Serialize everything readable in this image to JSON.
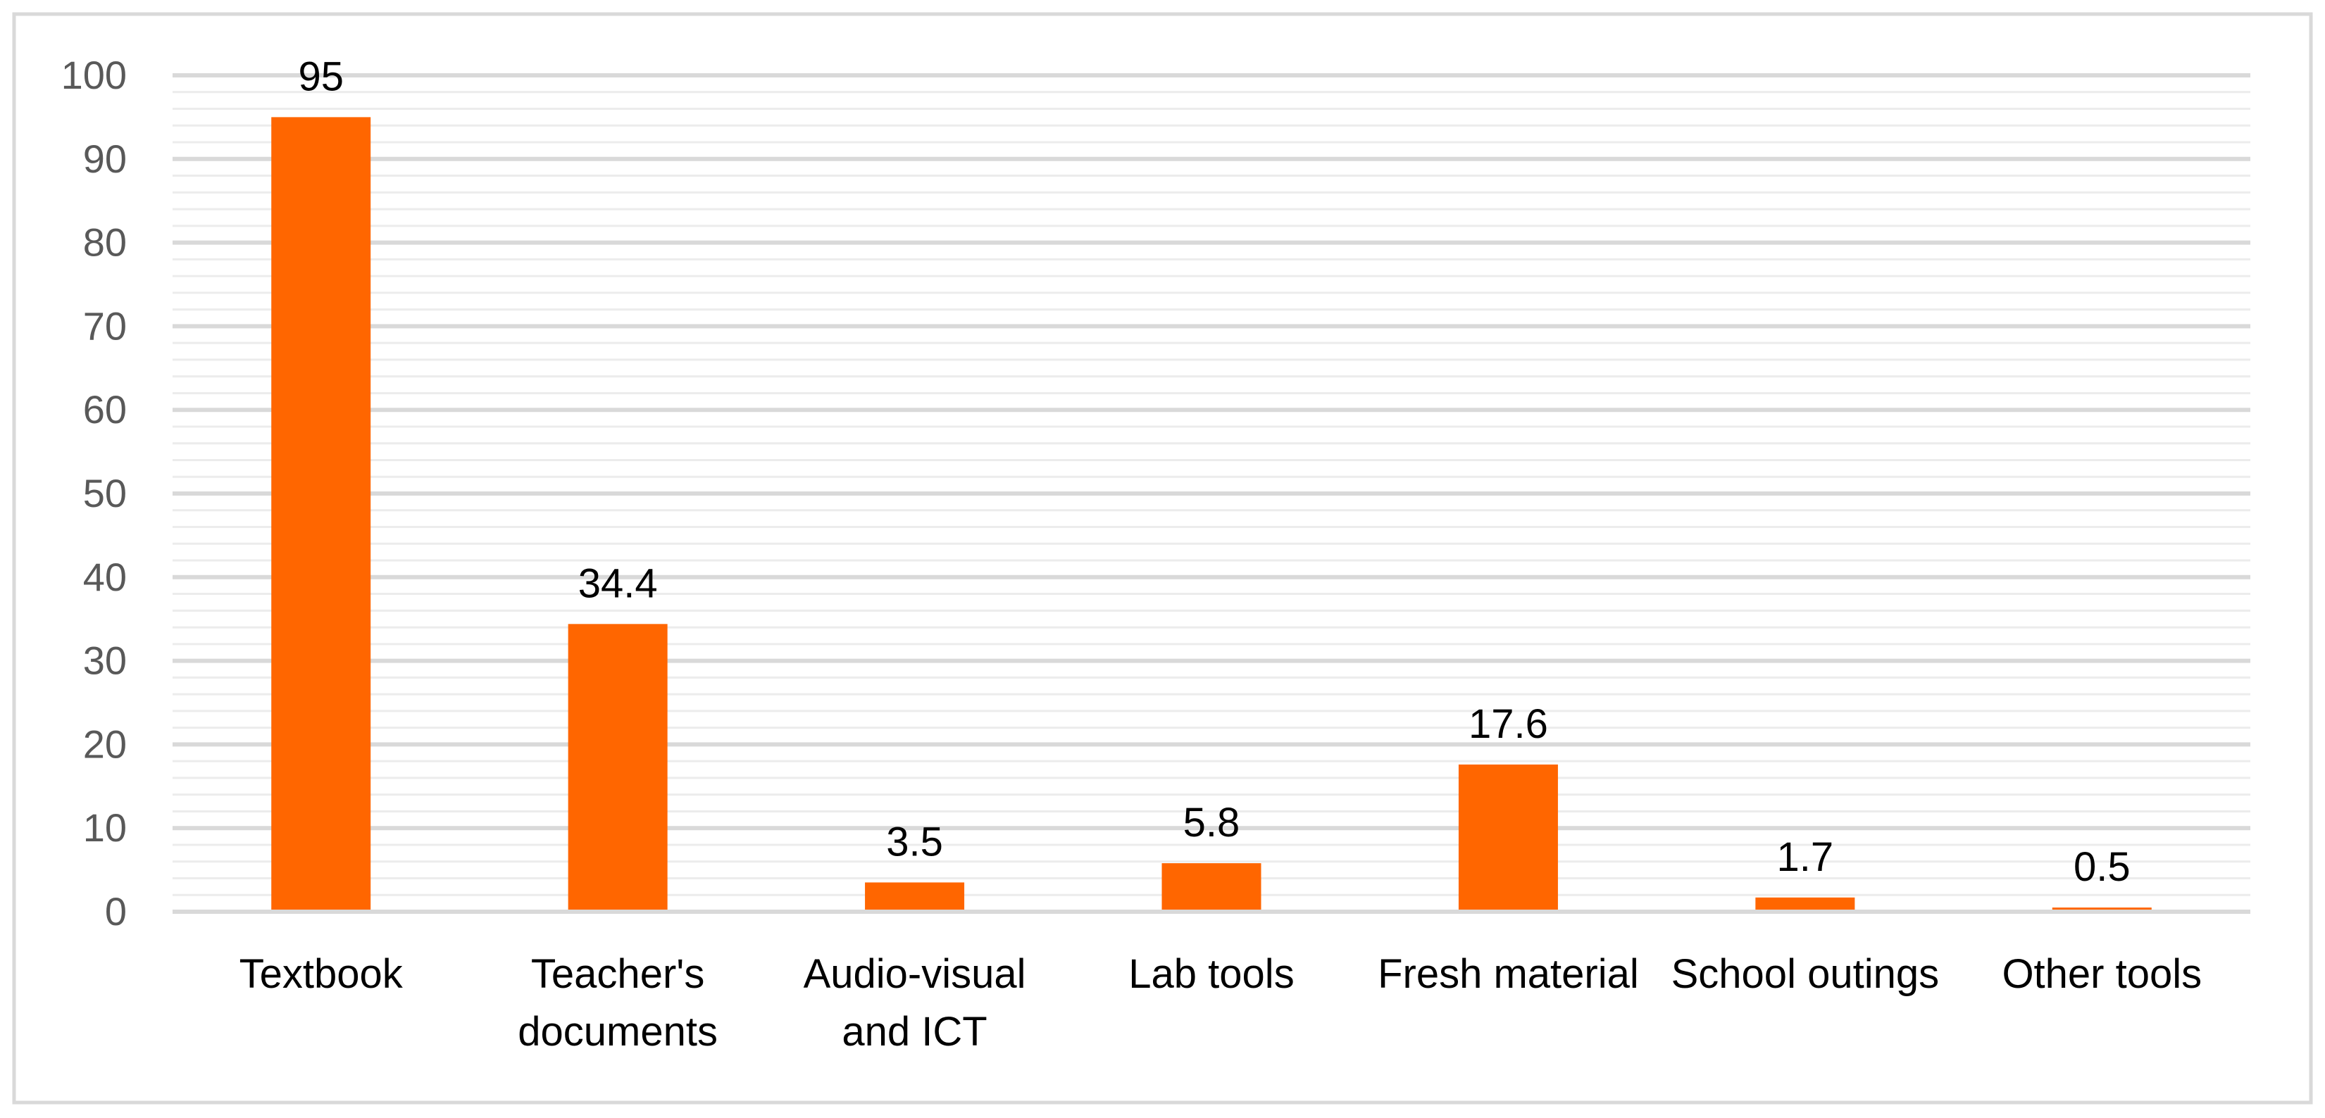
{
  "chart_data": {
    "type": "bar",
    "title": "",
    "xlabel": "",
    "ylabel": "",
    "ylim": [
      0,
      100
    ],
    "yticks": [
      0,
      10,
      20,
      30,
      40,
      50,
      60,
      70,
      80,
      90,
      100
    ],
    "minor_grid_step": 2,
    "grid": true,
    "legend": "none",
    "categories": [
      [
        "Textbook"
      ],
      [
        "Teacher's",
        "documents"
      ],
      [
        "Audio-visual",
        "and ICT"
      ],
      [
        "Lab tools"
      ],
      [
        "Fresh material"
      ],
      [
        "School outings"
      ],
      [
        "Other tools"
      ]
    ],
    "series": [
      {
        "name": "Series 1",
        "values": [
          95,
          34.4,
          3.5,
          5.8,
          17.6,
          1.7,
          0.5
        ],
        "labels": [
          "95",
          "34.4",
          "3.5",
          "5.8",
          "17.6",
          "1.7",
          "0.5"
        ]
      }
    ]
  },
  "colors": {
    "bar": "#ff6600",
    "major_grid": "#d9d9d9",
    "minor_grid": "#ececec",
    "border": "#d9d9d9",
    "axis": "#d9d9d9"
  }
}
